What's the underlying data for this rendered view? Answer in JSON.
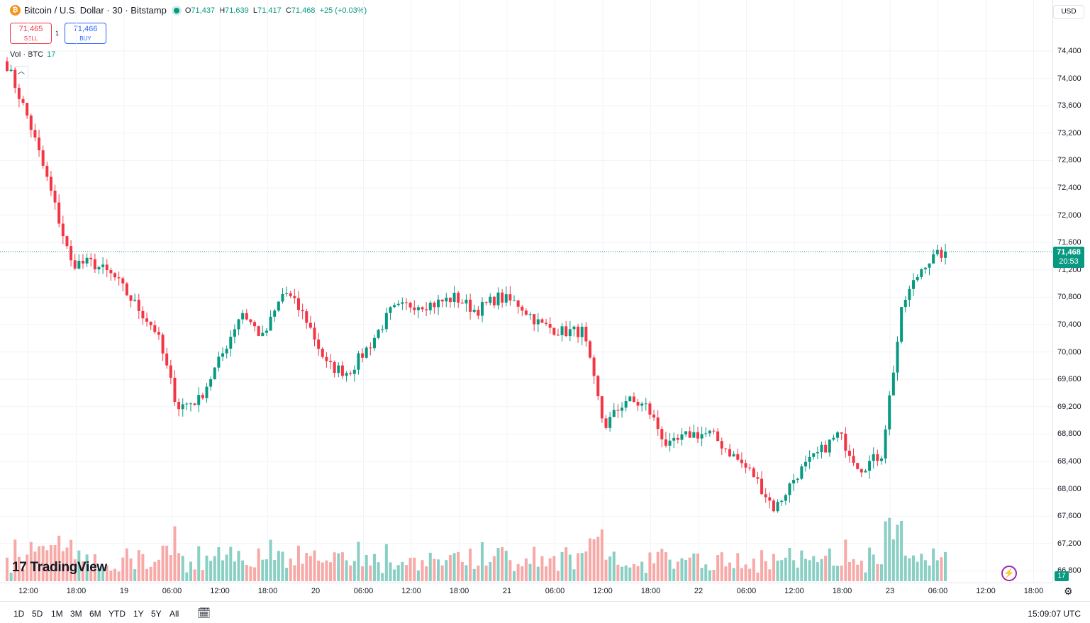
{
  "symbol": {
    "icon": "bitcoin-icon",
    "title": "Bitcoin / U.S. Dollar · 30 · Bitstamp",
    "open_label": "O",
    "open": "71,437",
    "high_label": "H",
    "high": "71,639",
    "low_label": "L",
    "low": "71,417",
    "close_label": "C",
    "close": "71,468",
    "change": "+25 (+0.03%)"
  },
  "trade": {
    "sell_price": "71,465",
    "sell_label": "SELL",
    "spread": "1",
    "buy_price": "71,466",
    "buy_label": "BUY"
  },
  "volume_legend": {
    "label": "Vol · BTC",
    "value": "17"
  },
  "currency": "USD",
  "last_price": {
    "price": "71,468",
    "countdown": "20:53"
  },
  "volume_last": "17",
  "logo_text": "TradingView",
  "y_axis": [
    "74,400",
    "74,000",
    "73,600",
    "73,200",
    "72,800",
    "72,400",
    "72,000",
    "71,600",
    "71,200",
    "70,800",
    "70,400",
    "70,000",
    "69,600",
    "69,200",
    "68,800",
    "68,400",
    "68,000",
    "67,600",
    "67,200",
    "66,800"
  ],
  "x_axis": [
    "12:00",
    "18:00",
    "19",
    "06:00",
    "12:00",
    "18:00",
    "20",
    "06:00",
    "12:00",
    "18:00",
    "21",
    "06:00",
    "12:00",
    "18:00",
    "22",
    "06:00",
    "12:00",
    "18:00",
    "23",
    "06:00",
    "12:00",
    "18:00"
  ],
  "ranges": [
    "1D",
    "5D",
    "1M",
    "3M",
    "6M",
    "YTD",
    "1Y",
    "5Y",
    "All"
  ],
  "clock": "15:09:07 UTC",
  "colors": {
    "up": "#089981",
    "down": "#f23645",
    "grid": "#f0f3fa"
  },
  "chart_data": {
    "type": "candlestick",
    "interval": "30",
    "y_unit": "USD",
    "yrange": [
      66800,
      74800
    ],
    "anchors_price": [
      74200,
      73400,
      72400,
      71300,
      71300,
      71100,
      70700,
      70300,
      69200,
      69300,
      69900,
      70600,
      70200,
      70900,
      70500,
      69800,
      69700,
      70100,
      70600,
      70700,
      70700,
      70800,
      70600,
      70800,
      70700,
      70400,
      70300,
      70300,
      68900,
      69300,
      69200,
      68600,
      68800,
      68800,
      68500,
      68200,
      67700,
      68200,
      68500,
      68800,
      68300,
      68500,
      70700,
      71300,
      71470
    ]
  }
}
